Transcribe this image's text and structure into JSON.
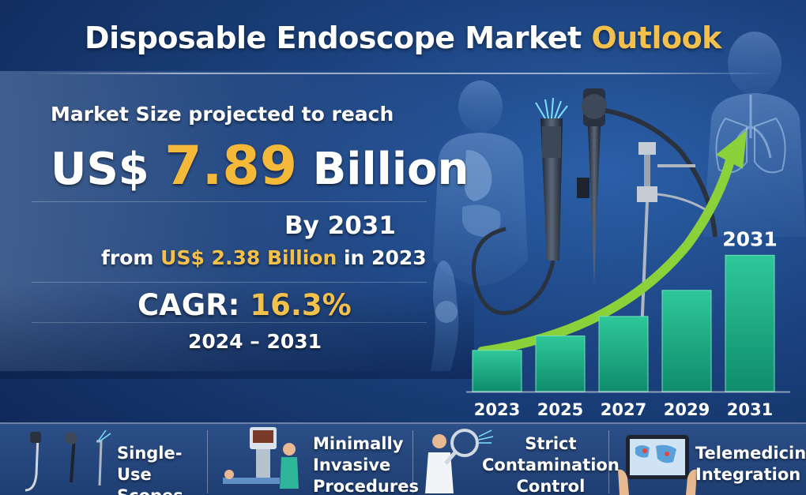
{
  "title": {
    "main": "Disposable Endoscope Market",
    "accent": "Outlook"
  },
  "headline": {
    "projected": "Market Size projected to reach",
    "prefix": "US$",
    "value": "7.89",
    "unit": "Billion",
    "by": "By 2031",
    "from_pre": "from",
    "from_value": "US$ 2.38 Billion",
    "from_post": "in 2023",
    "cagr_label": "CAGR:",
    "cagr_value": "16.3%",
    "period": "2024 – 2031"
  },
  "chart_data": {
    "type": "bar",
    "categories": [
      "2023",
      "2025",
      "2027",
      "2029",
      "2031"
    ],
    "values": [
      2.38,
      3.22,
      4.35,
      5.86,
      7.89
    ],
    "highlight_label": "2031",
    "ylim": [
      0,
      8.5
    ],
    "grid": false,
    "colors": {
      "bar_top": "#2fc79a",
      "bar_bottom": "#0f8c6c",
      "arrow": "#8bd13a"
    }
  },
  "features": [
    {
      "icon": "endoscope-icon",
      "lines": [
        "Single-Use",
        "Scopes"
      ]
    },
    {
      "icon": "surgery-icon",
      "lines": [
        "Minimally",
        "Invasive",
        "Procedures"
      ]
    },
    {
      "icon": "doctor-magnifier-icon",
      "lines": [
        "Strict",
        "Contamination",
        "Control"
      ]
    },
    {
      "icon": "tablet-map-icon",
      "lines": [
        "Telemedicine",
        "Integration"
      ]
    }
  ],
  "colors": {
    "accent": "#f3c14b",
    "background": "#1a3f7a",
    "bar": "#1fae84"
  }
}
